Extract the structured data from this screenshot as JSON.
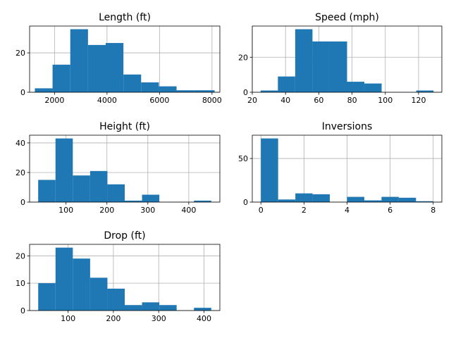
{
  "chart_data": [
    {
      "type": "bar",
      "title": "Length (ft)",
      "bin_edges": [
        1250,
        1925,
        2600,
        3275,
        3950,
        4625,
        5300,
        5975,
        6650,
        7325,
        8100
      ],
      "values": [
        2,
        14,
        32,
        24,
        25,
        9,
        5,
        3,
        1,
        1
      ],
      "xlim": [
        1050,
        8300
      ],
      "ylim": [
        0,
        33.6
      ],
      "xticks": [
        2000,
        4000,
        6000,
        8000
      ],
      "yticks": [
        0,
        20
      ],
      "xlabel": "",
      "ylabel": "",
      "grid": true
    },
    {
      "type": "bar",
      "title": "Speed (mph)",
      "bin_edges": [
        25,
        35.4,
        45.8,
        56.2,
        66.6,
        77,
        87.4,
        97.8,
        108.2,
        118.6,
        129
      ],
      "values": [
        1,
        9,
        36,
        29,
        29,
        6,
        5,
        0,
        0,
        1
      ],
      "xlim": [
        20,
        134
      ],
      "ylim": [
        0,
        37.8
      ],
      "xticks": [
        20,
        40,
        60,
        80,
        100,
        120
      ],
      "yticks": [
        0,
        20
      ],
      "xlabel": "",
      "ylabel": "",
      "grid": true
    },
    {
      "type": "bar",
      "title": "Height (ft)",
      "bin_edges": [
        32,
        74.3,
        116.6,
        158.9,
        201.2,
        243.5,
        285.8,
        328.1,
        370.4,
        412.7,
        455
      ],
      "values": [
        15,
        43,
        18,
        21,
        12,
        1,
        5,
        0,
        0,
        1
      ],
      "xlim": [
        11,
        476
      ],
      "ylim": [
        0,
        45.2
      ],
      "xticks": [
        100,
        200,
        300,
        400
      ],
      "yticks": [
        0,
        20,
        40
      ],
      "xlabel": "",
      "ylabel": "",
      "grid": true
    },
    {
      "type": "bar",
      "title": "Inversions",
      "bin_edges": [
        0,
        0.8,
        1.6,
        2.4,
        3.2,
        4,
        4.8,
        5.6,
        6.4,
        7.2,
        8
      ],
      "values": [
        73,
        3,
        10,
        9,
        0,
        6,
        2,
        6,
        5,
        1
      ],
      "xlim": [
        -0.4,
        8.4
      ],
      "ylim": [
        0,
        76.7
      ],
      "xticks": [
        0,
        2,
        4,
        6,
        8
      ],
      "yticks": [
        0,
        50
      ],
      "xlabel": "",
      "ylabel": "",
      "grid": true
    },
    {
      "type": "bar",
      "title": "Drop (ft)",
      "bin_edges": [
        34,
        72.2,
        110.4,
        148.6,
        186.8,
        225,
        263.2,
        301.4,
        339.6,
        377.8,
        416
      ],
      "values": [
        10,
        23,
        19,
        12,
        8,
        2,
        3,
        2,
        0,
        1
      ],
      "xlim": [
        15,
        435
      ],
      "ylim": [
        0,
        24.2
      ],
      "xticks": [
        100,
        200,
        300,
        400
      ],
      "yticks": [
        0,
        10,
        20
      ],
      "xlabel": "",
      "ylabel": "",
      "grid": true
    }
  ],
  "colors": {
    "bar": "#1f77b4",
    "grid": "#b0b0b0"
  }
}
